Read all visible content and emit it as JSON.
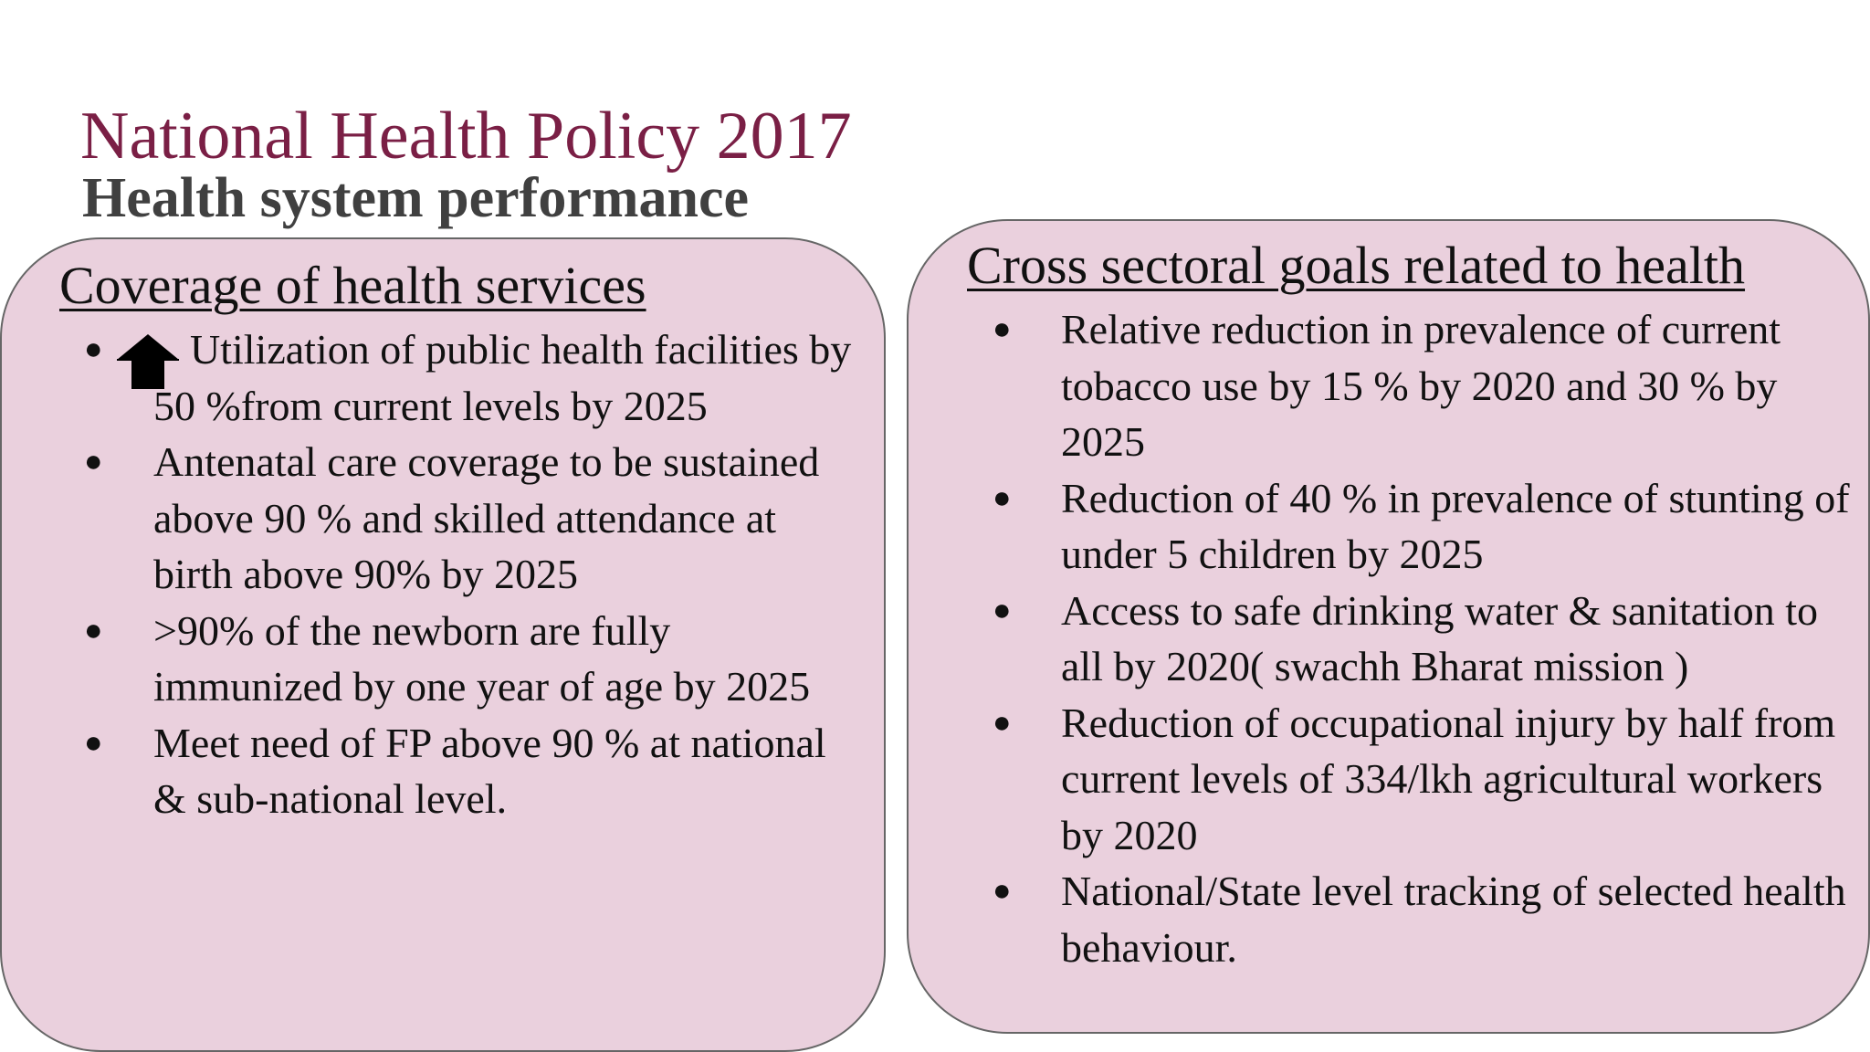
{
  "slide": {
    "title": "National Health Policy 2017",
    "subtitle": "Health system performance",
    "colors": {
      "title": "#7a1f45",
      "subtitle": "#404040",
      "panel_fill": "#ead0dd",
      "panel_border": "#666666"
    }
  },
  "left_panel": {
    "heading": "Coverage of health services",
    "items": [
      {
        "icon": "up-arrow-icon",
        "text": "Utilization of public health facilities by 50 %from current levels by 2025"
      },
      {
        "text": "Antenatal care coverage to be sustained above 90 % and skilled attendance at birth above 90% by 2025"
      },
      {
        "text": ">90% of the newborn are fully immunized by one year of age by 2025"
      },
      {
        "text": "Meet need of FP above 90 % at national & sub-national level."
      }
    ]
  },
  "right_panel": {
    "heading": "Cross sectoral goals related to health",
    "items": [
      {
        "text": "Relative reduction in prevalence of current tobacco use by 15 % by 2020 and 30 % by 2025"
      },
      {
        "text": "Reduction  of 40 % in prevalence of stunting of under 5 children by 2025"
      },
      {
        "text": "Access to safe drinking water & sanitation to all by 2020( swachh Bharat mission )"
      },
      {
        "text": "Reduction of occupational injury by half from current levels of 334/lkh agricultural workers by 2020"
      },
      {
        "text": "National/State level tracking of selected health behaviour."
      }
    ]
  }
}
